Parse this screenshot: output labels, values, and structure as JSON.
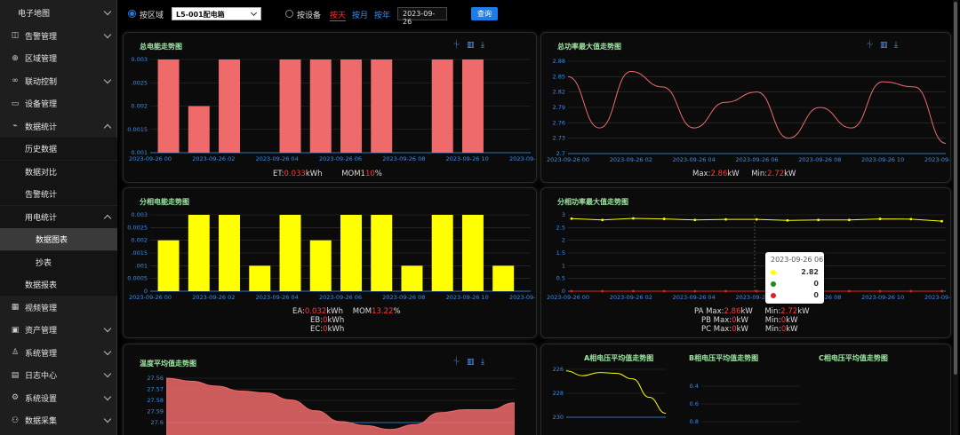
{
  "sidebar": {
    "items": [
      {
        "label": "电子地图",
        "icon": "",
        "chevron": "down",
        "kind": "top"
      },
      {
        "label": "告警管理",
        "icon": "alarm-icon",
        "chevron": "down",
        "kind": "top"
      },
      {
        "label": "区域管理",
        "icon": "target-icon",
        "chevron": "",
        "kind": "top"
      },
      {
        "label": "联动控制",
        "icon": "link-icon",
        "chevron": "down",
        "kind": "top"
      },
      {
        "label": "设备管理",
        "icon": "monitor-icon",
        "chevron": "",
        "kind": "top"
      },
      {
        "label": "数据统计",
        "icon": "chart-icon",
        "chevron": "up",
        "kind": "top"
      },
      {
        "label": "历史数据",
        "icon": "",
        "chevron": "",
        "kind": "sub"
      },
      {
        "label": "数据对比",
        "icon": "",
        "chevron": "",
        "kind": "sub"
      },
      {
        "label": "告警统计",
        "icon": "",
        "chevron": "",
        "kind": "sub"
      },
      {
        "label": "用电统计",
        "icon": "",
        "chevron": "up",
        "kind": "sub"
      },
      {
        "label": "数据图表",
        "icon": "",
        "chevron": "",
        "kind": "sub2-active"
      },
      {
        "label": "抄表",
        "icon": "",
        "chevron": "",
        "kind": "sub2"
      },
      {
        "label": "数据报表",
        "icon": "",
        "chevron": "",
        "kind": "sub"
      },
      {
        "label": "视频管理",
        "icon": "grid-icon",
        "chevron": "",
        "kind": "top"
      },
      {
        "label": "资产管理",
        "icon": "box-icon",
        "chevron": "down",
        "kind": "top"
      },
      {
        "label": "系统管理",
        "icon": "user-icon",
        "chevron": "down",
        "kind": "top"
      },
      {
        "label": "日志中心",
        "icon": "log-icon",
        "chevron": "down",
        "kind": "top"
      },
      {
        "label": "系统设置",
        "icon": "settings-icon",
        "chevron": "down",
        "kind": "top"
      },
      {
        "label": "数据采集",
        "icon": "collect-icon",
        "chevron": "down",
        "kind": "top"
      }
    ]
  },
  "toolbar": {
    "radio_area": "按区域",
    "select_value": "L5-001配电箱",
    "radio_device": "按设备",
    "tab_day": "按天",
    "tab_month": "按月",
    "tab_year": "按年",
    "date_value": "2023-09-26",
    "query_label": "查询"
  },
  "colors": {
    "accent": "#1e7ce8",
    "bar_red": "#ef6a6a",
    "bar_yellow": "#ffff00",
    "title_green": "#9fe6a4",
    "axis_blue": "#3a8ef0"
  },
  "panels": {
    "total_energy": {
      "title": "总电能走势图",
      "footer": {
        "et_label": "ET:",
        "et_value": "0.033",
        "et_unit": "kWh",
        "mom_label": "MOM",
        "mom_value": "1",
        "mom_value2": "10",
        "mom_unit": "%"
      }
    },
    "total_power": {
      "title": "总功率最大值走势图",
      "footer": {
        "max_label": "Max:",
        "max_value": "2.86",
        "max_unit": "kW",
        "min_label": "Min:",
        "min_value": "2.72",
        "min_unit": "kW"
      }
    },
    "phase_energy": {
      "title": "分相电能走势图",
      "footer": {
        "ea_label": "EA:",
        "ea_value": "0.032",
        "ea_unit": "kWh",
        "mom_label": "MOM",
        "mom_value": "13.22",
        "mom_unit": "%",
        "eb_label": "EB:",
        "eb_value": "0",
        "eb_unit": "kWh",
        "ec_label": "EC:",
        "ec_value": "0",
        "ec_unit": "kWh"
      }
    },
    "phase_power": {
      "title": "分相功率最大值走势图",
      "footer": {
        "pa_label": "PA Max:",
        "pa_value": "2.86",
        "pa_unit": "kW",
        "pa_min_label": "Min:",
        "pa_min_value": "2.72",
        "pa_min_unit": "kW",
        "pb_label": "PB Max:",
        "pb_value": "0",
        "pb_unit": "kW",
        "pb_min_label": "Min:",
        "pb_min_value": "0",
        "pb_min_unit": "kW",
        "pc_label": "PC Max:",
        "pc_value": "0",
        "pc_unit": "kW",
        "pc_min_label": "Min:",
        "pc_min_value": "0",
        "pc_min_unit": "kW"
      },
      "tooltip": {
        "title": "2023-09-26 06",
        "rows": [
          {
            "value": "2.82",
            "color": "#ffff00"
          },
          {
            "value": "0",
            "color": "#1f8a1f"
          },
          {
            "value": "0",
            "color": "#e02020"
          }
        ]
      }
    },
    "temperature": {
      "title": "温度平均值走势图"
    },
    "voltage_a": {
      "title": "A相电压平均值走势图"
    },
    "voltage_b": {
      "title": "B相电压平均值走势图"
    },
    "voltage_c": {
      "title": "C相电压平均值走势图"
    }
  },
  "chart_data": [
    {
      "id": "total_energy",
      "type": "bar",
      "title": "总电能走势图",
      "color": "#ef6a6a",
      "x_tick_labels": [
        "2023-09-26 00",
        "2023-09-26 02",
        "2023-09-26 04",
        "2023-09-26 06",
        "2023-09-26 08",
        "2023-09-26 10",
        "2023-09-26 12"
      ],
      "y_tick_labels": [
        "0.001",
        "0.0015",
        "0.002",
        ".0025",
        "0.003"
      ],
      "ylim": [
        0.001,
        0.003
      ],
      "values": [
        0.003,
        0.002,
        0.003,
        0.001,
        0.003,
        0.003,
        0.003,
        0.003,
        0.001,
        0.003,
        0.003,
        0.001
      ]
    },
    {
      "id": "total_power",
      "type": "line",
      "title": "总功率最大值走势图",
      "color": "#ef6a6a",
      "x_tick_labels": [
        "2023-09-26 00",
        "2023-09-26 02",
        "2023-09-26 04",
        "2023-09-26 06",
        "2023-09-26 08",
        "2023-09-26 10",
        "2023-09-26 12"
      ],
      "y_tick_labels": [
        "2.7",
        "2.73",
        "2.76",
        "2.79",
        "2.82",
        "2.85",
        "2.88"
      ],
      "ylim": [
        2.7,
        2.88
      ],
      "values": [
        2.85,
        2.75,
        2.86,
        2.83,
        2.75,
        2.8,
        2.82,
        2.73,
        2.79,
        2.75,
        2.84,
        2.83,
        2.72
      ]
    },
    {
      "id": "phase_energy",
      "type": "bar",
      "title": "分相电能走势图",
      "color": "#ffff00",
      "x_tick_labels": [
        "2023-09-26 00",
        "2023-09-26 02",
        "2023-09-26 04",
        "2023-09-26 06",
        "2023-09-26 08",
        "2023-09-26 10",
        "2023-09-26 12"
      ],
      "y_tick_labels": [
        "0",
        "0.0005",
        ".001",
        ".0015",
        "0.002",
        "0.0025",
        "0.003"
      ],
      "ylim": [
        0,
        0.003
      ],
      "values": [
        0.002,
        0.003,
        0.003,
        0.001,
        0.003,
        0.002,
        0.003,
        0.003,
        0.001,
        0.003,
        0.003,
        0.001
      ]
    },
    {
      "id": "phase_power",
      "type": "line",
      "title": "分相功率最大值走势图",
      "x_tick_labels": [
        "2023-09-26 00",
        "2023-09-26 02",
        "2023-09-26 04",
        "2023-09-26 06",
        "2023-09-26 08",
        "2023-09-26 10",
        "2023-09-26 12"
      ],
      "y_tick_labels": [
        "0",
        "0.5",
        "1",
        "1.5",
        "2",
        "2.5",
        "3"
      ],
      "ylim": [
        0,
        3
      ],
      "series": [
        {
          "color": "#ffff00",
          "values": [
            2.85,
            2.8,
            2.86,
            2.84,
            2.8,
            2.82,
            2.82,
            2.78,
            2.8,
            2.8,
            2.84,
            2.83,
            2.75
          ]
        },
        {
          "color": "#1f8a1f",
          "values": [
            0,
            0,
            0,
            0,
            0,
            0,
            0,
            0,
            0,
            0,
            0,
            0,
            0
          ]
        },
        {
          "color": "#e02020",
          "values": [
            0,
            0,
            0,
            0,
            0,
            0,
            0,
            0,
            0,
            0,
            0,
            0,
            0
          ]
        }
      ]
    },
    {
      "id": "temperature",
      "type": "area",
      "title": "温度平均值走势图",
      "color": "#ef6a6a",
      "y_tick_labels": [
        "27.6",
        "27.59",
        "27.58",
        "27.57",
        "27.56"
      ],
      "ylim": [
        27.555,
        27.6
      ],
      "values": [
        27.6,
        27.597,
        27.592,
        27.587,
        27.585,
        27.578,
        27.567,
        27.556,
        27.552,
        27.548,
        27.553,
        27.565,
        27.568,
        27.568,
        27.575
      ]
    },
    {
      "id": "voltage_a",
      "type": "line",
      "title": "A相电压平均值走势图",
      "color": "#ffff00",
      "y_tick_labels": [
        "230",
        "228",
        "226"
      ],
      "ylim": [
        224,
        230
      ],
      "values": [
        229.8,
        229.2,
        229.6,
        229.5,
        228.8,
        226.5,
        224.5
      ]
    },
    {
      "id": "voltage_b",
      "type": "line",
      "title": "B相电压平均值走势图",
      "y_tick_labels": [
        "1",
        "0.8",
        "0.6",
        "0.4"
      ],
      "ylim": [
        0,
        1
      ],
      "values": []
    },
    {
      "id": "voltage_c",
      "type": "line",
      "title": "C相电压平均值走势图",
      "y_tick_labels": [],
      "ylim": [
        0,
        1
      ],
      "values": []
    }
  ]
}
